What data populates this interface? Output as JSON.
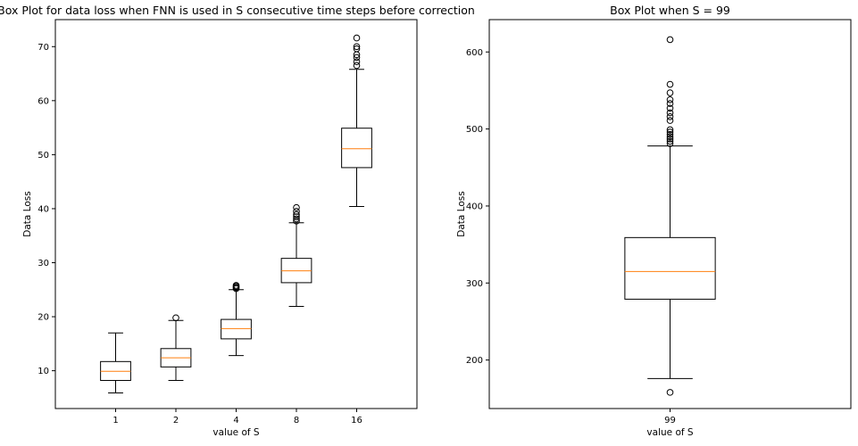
{
  "chart_data": [
    {
      "type": "box",
      "title": "Box Plot for data loss when FNN is used in S consecutive time steps before correction",
      "xlabel": "value of S",
      "ylabel": "Data Loss",
      "ylim": [
        3,
        75
      ],
      "yticks": [
        10,
        20,
        30,
        40,
        50,
        60,
        70
      ],
      "categories": [
        "1",
        "2",
        "4",
        "8",
        "16"
      ],
      "boxes": [
        {
          "category": "1",
          "whisker_low": 5.9,
          "q1": 8.2,
          "median": 9.9,
          "q3": 11.7,
          "whisker_high": 17.0,
          "outliers": []
        },
        {
          "category": "2",
          "whisker_low": 8.2,
          "q1": 10.7,
          "median": 12.4,
          "q3": 14.1,
          "whisker_high": 19.3,
          "outliers": [
            19.8
          ]
        },
        {
          "category": "4",
          "whisker_low": 12.8,
          "q1": 15.9,
          "median": 17.8,
          "q3": 19.5,
          "whisker_high": 25.0,
          "outliers": [
            25.2,
            25.4,
            25.6,
            25.8
          ]
        },
        {
          "category": "8",
          "whisker_low": 21.9,
          "q1": 26.3,
          "median": 28.5,
          "q3": 30.8,
          "whisker_high": 37.4,
          "outliers": [
            37.7,
            38.1,
            38.5,
            38.9,
            39.5,
            40.2
          ]
        },
        {
          "category": "16",
          "whisker_low": 40.4,
          "q1": 47.6,
          "median": 51.1,
          "q3": 54.9,
          "whisker_high": 65.8,
          "outliers": [
            66.5,
            67.2,
            68.0,
            68.5,
            69.6,
            70.0,
            71.6
          ]
        }
      ],
      "box_color": "#000000",
      "median_color": "#ff7f0e",
      "grid": false
    },
    {
      "type": "box",
      "title": "Box Plot when S = 99",
      "xlabel": "value of S",
      "ylabel": "Data Loss",
      "ylim": [
        137,
        642
      ],
      "yticks": [
        200,
        300,
        400,
        500,
        600
      ],
      "categories": [
        "99"
      ],
      "boxes": [
        {
          "category": "99",
          "whisker_low": 176,
          "q1": 279,
          "median": 315,
          "q3": 359,
          "whisker_high": 478,
          "outliers": [
            158,
            481,
            484,
            487,
            490,
            493,
            496,
            499,
            511,
            516,
            521,
            527,
            533,
            538,
            547,
            558,
            616
          ]
        }
      ],
      "box_color": "#000000",
      "median_color": "#ff7f0e",
      "grid": false
    }
  ]
}
